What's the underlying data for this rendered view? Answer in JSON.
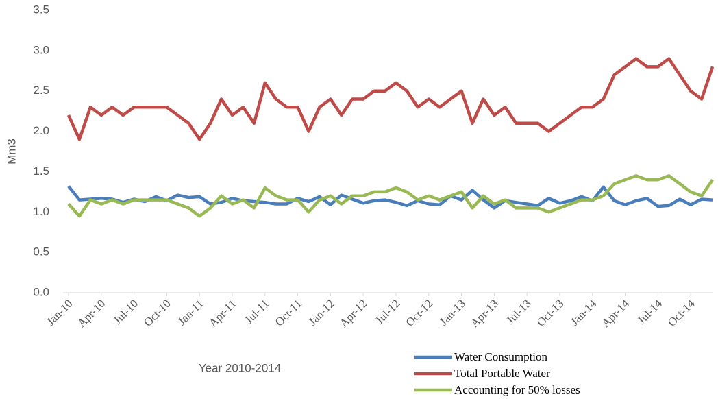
{
  "chart_data": {
    "type": "line",
    "x_label": "Year 2010-2014",
    "y_label": "Mm3",
    "categories": [
      "Jan-10",
      null,
      null,
      "Apr-10",
      null,
      null,
      "Jul-10",
      null,
      null,
      "Oct-10",
      null,
      null,
      "Jan-11",
      null,
      null,
      "Apr-11",
      null,
      null,
      "Jul-11",
      null,
      null,
      "Oct-11",
      null,
      null,
      "Jan-12",
      null,
      null,
      "Apr-12",
      null,
      null,
      "Jul-12",
      null,
      null,
      "Oct-12",
      null,
      null,
      "Jan-13",
      null,
      null,
      "Apr-13",
      null,
      null,
      "Jul-13",
      null,
      null,
      "Oct-13",
      null,
      null,
      "Jan-14",
      null,
      null,
      "Apr-14",
      null,
      null,
      "Jul-14",
      null,
      null,
      "Oct-14",
      null,
      null
    ],
    "series": [
      {
        "name": "Water Consumption",
        "color": "#4a7ebb",
        "values": [
          1.32,
          1.15,
          1.16,
          1.17,
          1.16,
          1.12,
          1.16,
          1.13,
          1.19,
          1.14,
          1.21,
          1.18,
          1.19,
          1.1,
          1.12,
          1.17,
          1.14,
          1.13,
          1.12,
          1.1,
          1.1,
          1.17,
          1.13,
          1.19,
          1.09,
          1.21,
          1.16,
          1.11,
          1.14,
          1.15,
          1.12,
          1.08,
          1.14,
          1.1,
          1.09,
          1.2,
          1.15,
          1.27,
          1.15,
          1.05,
          1.14,
          1.12,
          1.1,
          1.08,
          1.17,
          1.11,
          1.14,
          1.19,
          1.14,
          1.31,
          1.14,
          1.09,
          1.14,
          1.17,
          1.07,
          1.08,
          1.16,
          1.09,
          1.16,
          1.15
        ]
      },
      {
        "name": "Total Portable Water",
        "color": "#be4b48",
        "values": [
          2.2,
          1.9,
          2.3,
          2.2,
          2.3,
          2.2,
          2.3,
          2.3,
          2.3,
          2.3,
          2.2,
          2.1,
          1.9,
          2.1,
          2.4,
          2.2,
          2.3,
          2.1,
          2.6,
          2.4,
          2.3,
          2.3,
          2.0,
          2.3,
          2.4,
          2.2,
          2.4,
          2.4,
          2.5,
          2.5,
          2.6,
          2.5,
          2.3,
          2.4,
          2.3,
          2.4,
          2.5,
          2.1,
          2.4,
          2.2,
          2.3,
          2.1,
          2.1,
          2.1,
          2.0,
          2.1,
          2.2,
          2.3,
          2.3,
          2.4,
          2.7,
          2.8,
          2.9,
          2.8,
          2.8,
          2.9,
          2.7,
          2.5,
          2.4,
          2.8
        ]
      },
      {
        "name": "Accounting for 50% losses",
        "color": "#98b954",
        "values": [
          1.1,
          0.95,
          1.15,
          1.1,
          1.15,
          1.1,
          1.15,
          1.15,
          1.15,
          1.15,
          1.1,
          1.05,
          0.95,
          1.05,
          1.2,
          1.1,
          1.15,
          1.05,
          1.3,
          1.2,
          1.15,
          1.15,
          1.0,
          1.15,
          1.2,
          1.1,
          1.2,
          1.2,
          1.25,
          1.25,
          1.3,
          1.25,
          1.15,
          1.2,
          1.15,
          1.2,
          1.25,
          1.05,
          1.2,
          1.1,
          1.15,
          1.05,
          1.05,
          1.05,
          1.0,
          1.05,
          1.1,
          1.15,
          1.15,
          1.2,
          1.35,
          1.4,
          1.45,
          1.4,
          1.4,
          1.45,
          1.35,
          1.25,
          1.2,
          1.4
        ]
      }
    ],
    "ylim": [
      0,
      3.5
    ],
    "yticks": [
      {
        "value": 0,
        "label": "0.0"
      },
      0.5,
      {
        "value": 1,
        "label": "1.0"
      },
      1.5,
      {
        "value": 2,
        "label": "2.0"
      },
      2.5,
      {
        "value": 3,
        "label": "3.0"
      },
      3.5
    ],
    "grid": false,
    "legend": "bottom-right"
  }
}
